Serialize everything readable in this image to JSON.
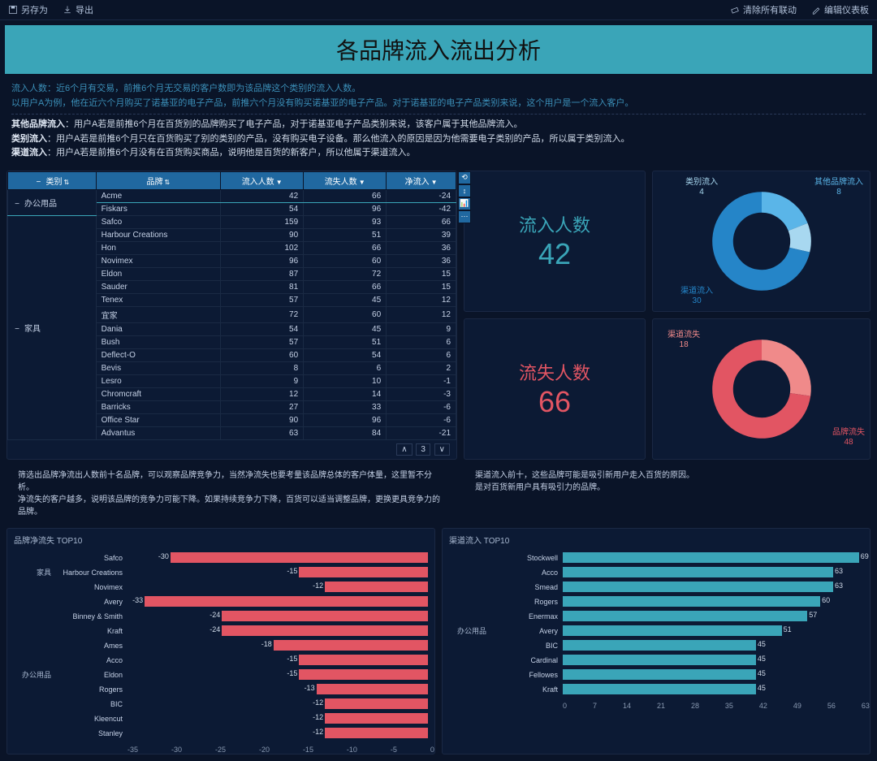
{
  "toolbar": {
    "saveAs": "另存为",
    "export": "导出",
    "clearLink": "清除所有联动",
    "editDash": "编辑仪表板"
  },
  "header": {
    "title": "各品牌流入流出分析"
  },
  "desc": {
    "l1": "流入人数：近6个月有交易，前推6个月无交易的客户数即为该品牌这个类别的流入人数。",
    "l2": "以用户A为例，他在近六个月购买了诺基亚的电子产品，前推六个月没有购买诺基亚的电子产品。对于诺基亚的电子产品类别来说，这个用户是一个流入客户。",
    "l3a": "其他品牌流入",
    "l3b": "：用户A若是前推6个月在百货别的品牌购买了电子产品，对于诺基亚电子产品类别来说，该客户属于其他品牌流入。",
    "l4a": "类别流入",
    "l4b": "：用户A若是前推6个月只在百货购买了别的类别的产品，没有购买电子设备。那么他流入的原因是因为他需要电子类别的产品，所以属于类别流入。",
    "l5a": "渠道流入",
    "l5b": "：用户A若是前推6个月没有在百货购买商品，说明他是百货的新客户，所以他属于渠道流入。"
  },
  "table": {
    "cols": [
      "类别",
      "品牌",
      "流入人数",
      "流失人数",
      "净流入"
    ],
    "cat1": "办公用品",
    "cat2": "家具",
    "rows": [
      {
        "cat": "办公用品",
        "brand": "Acme",
        "in": 42,
        "out": 66,
        "net": -24,
        "hi": true
      },
      {
        "cat": "办公用品",
        "brand": "Fiskars",
        "in": 54,
        "out": 96,
        "net": -42
      },
      {
        "cat": "家具",
        "brand": "Safco",
        "in": 159,
        "out": 93,
        "net": 66
      },
      {
        "cat": "家具",
        "brand": "Harbour Creations",
        "in": 90,
        "out": 51,
        "net": 39
      },
      {
        "cat": "家具",
        "brand": "Hon",
        "in": 102,
        "out": 66,
        "net": 36
      },
      {
        "cat": "家具",
        "brand": "Novimex",
        "in": 96,
        "out": 60,
        "net": 36
      },
      {
        "cat": "家具",
        "brand": "Eldon",
        "in": 87,
        "out": 72,
        "net": 15
      },
      {
        "cat": "家具",
        "brand": "Sauder",
        "in": 81,
        "out": 66,
        "net": 15
      },
      {
        "cat": "家具",
        "brand": "Tenex",
        "in": 57,
        "out": 45,
        "net": 12
      },
      {
        "cat": "家具",
        "brand": "宜家",
        "in": 72,
        "out": 60,
        "net": 12
      },
      {
        "cat": "家具",
        "brand": "Dania",
        "in": 54,
        "out": 45,
        "net": 9
      },
      {
        "cat": "家具",
        "brand": "Bush",
        "in": 57,
        "out": 51,
        "net": 6
      },
      {
        "cat": "家具",
        "brand": "Deflect-O",
        "in": 60,
        "out": 54,
        "net": 6
      },
      {
        "cat": "家具",
        "brand": "Bevis",
        "in": 8,
        "out": 6,
        "net": 2
      },
      {
        "cat": "家具",
        "brand": "Lesro",
        "in": 9,
        "out": 10,
        "net": -1
      },
      {
        "cat": "家具",
        "brand": "Chromcraft",
        "in": 12,
        "out": 14,
        "net": -3
      },
      {
        "cat": "家具",
        "brand": "Barricks",
        "in": 27,
        "out": 33,
        "net": -6
      },
      {
        "cat": "家具",
        "brand": "Office Star",
        "in": 90,
        "out": 96,
        "net": -6
      },
      {
        "cat": "家具",
        "brand": "Advantus",
        "in": 63,
        "out": 84,
        "net": -21
      }
    ],
    "page": "3"
  },
  "metrics": {
    "inLabel": "流入人数",
    "inVal": "42",
    "outLabel": "流失人数",
    "outVal": "66"
  },
  "donut1": {
    "segments": [
      {
        "label": "其他品牌流入",
        "val": 8,
        "color": "#5ab5e8"
      },
      {
        "label": "类别流入",
        "val": 4,
        "color": "#a8d8f0"
      },
      {
        "label": "渠道流入",
        "val": 30,
        "color": "#2585c8"
      }
    ]
  },
  "donut2": {
    "segments": [
      {
        "label": "渠道流失",
        "val": 18,
        "color": "#f08a8a"
      },
      {
        "label": "品牌流失",
        "val": 48,
        "color": "#e25563"
      }
    ]
  },
  "notes": {
    "left1": "筛选出品牌净流出人数前十名品牌，可以观察品牌竞争力，当然净流失也要考量该品牌总体的客户体量，这里暂不分析。",
    "left2": "净流失的客户越多，说明该品牌的竞争力可能下降。如果持续竞争力下降，百货可以适当调整品牌，更换更具竞争力的品牌。",
    "right1": "渠道流入前十，这些品牌可能是吸引新用户走入百货的原因。",
    "right2": "是对百货新用户具有吸引力的品牌。"
  },
  "chart1": {
    "title": "品牌净流失 TOP10",
    "color": "#e25563",
    "min": -35,
    "max": 0,
    "ticks": [
      "-35",
      "-30",
      "-25",
      "-20",
      "-15",
      "-10",
      "-5",
      "0"
    ],
    "cat1": "家具",
    "cat2": "办公用品",
    "rows": [
      {
        "cat": "家具",
        "label": "Safco",
        "val": -30
      },
      {
        "cat": "家具",
        "label": "Harbour Creations",
        "val": -15
      },
      {
        "cat": "家具",
        "label": "Novimex",
        "val": -12
      },
      {
        "cat": "办公用品",
        "label": "Avery",
        "val": -33
      },
      {
        "cat": "办公用品",
        "label": "Binney & Smith",
        "val": -24
      },
      {
        "cat": "办公用品",
        "label": "Kraft",
        "val": -24
      },
      {
        "cat": "办公用品",
        "label": "Ames",
        "val": -18
      },
      {
        "cat": "办公用品",
        "label": "Acco",
        "val": -15
      },
      {
        "cat": "办公用品",
        "label": "Eldon",
        "val": -15
      },
      {
        "cat": "办公用品",
        "label": "Rogers",
        "val": -13
      },
      {
        "cat": "办公用品",
        "label": "BIC",
        "val": -12
      },
      {
        "cat": "办公用品",
        "label": "Kleencut",
        "val": -12
      },
      {
        "cat": "办公用品",
        "label": "Stanley",
        "val": -12
      }
    ]
  },
  "chart2": {
    "title": "渠道流入 TOP10",
    "color": "#3aa5b8",
    "min": 0,
    "max": 70,
    "ticks": [
      "0",
      "7",
      "14",
      "21",
      "28",
      "35",
      "42",
      "49",
      "56",
      "63"
    ],
    "cat": "办公用品",
    "rows": [
      {
        "label": "Stockwell",
        "val": 69
      },
      {
        "label": "Acco",
        "val": 63
      },
      {
        "label": "Smead",
        "val": 63
      },
      {
        "label": "Rogers",
        "val": 60
      },
      {
        "label": "Enermax",
        "val": 57
      },
      {
        "label": "Avery",
        "val": 51
      },
      {
        "label": "BIC",
        "val": 45
      },
      {
        "label": "Cardinal",
        "val": 45
      },
      {
        "label": "Fellowes",
        "val": 45
      },
      {
        "label": "Kraft",
        "val": 45
      }
    ]
  }
}
